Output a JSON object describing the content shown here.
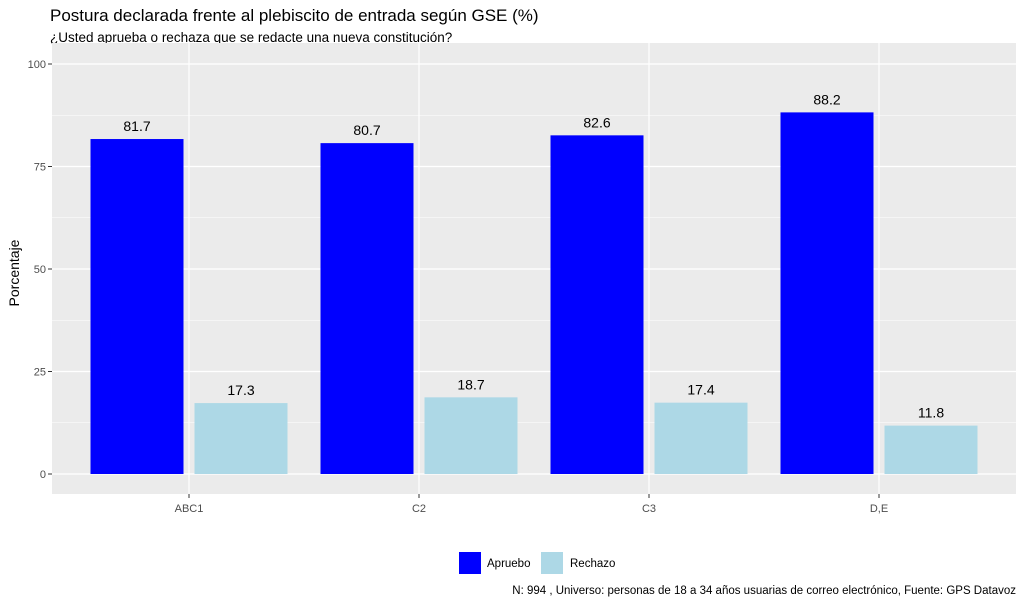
{
  "chart_data": {
    "type": "bar",
    "title": "Postura declarada frente al plebiscito de entrada según GSE (%)",
    "subtitle": "¿Usted aprueba o rechaza que se redacte una nueva constitución?",
    "caption": "N: 994 , Universo: personas de 18 a 34 años usuarias de correo electrónico, Fuente: GPS Datavoz",
    "xlabel": "",
    "ylabel": "Porcentaje",
    "categories": [
      "ABC1",
      "C2",
      "C3",
      "D,E"
    ],
    "series": [
      {
        "name": "Apruebo",
        "color": "#0000ff",
        "values": [
          81.7,
          80.7,
          82.6,
          88.2
        ]
      },
      {
        "name": "Rechazo",
        "color": "#add8e6",
        "values": [
          17.3,
          18.7,
          17.4,
          11.8
        ]
      }
    ],
    "ylim": [
      0,
      100
    ],
    "yticks": [
      0,
      25,
      50,
      75,
      100
    ],
    "grid": true,
    "panel_color": "#ebebeb",
    "legend_position": "bottom"
  }
}
